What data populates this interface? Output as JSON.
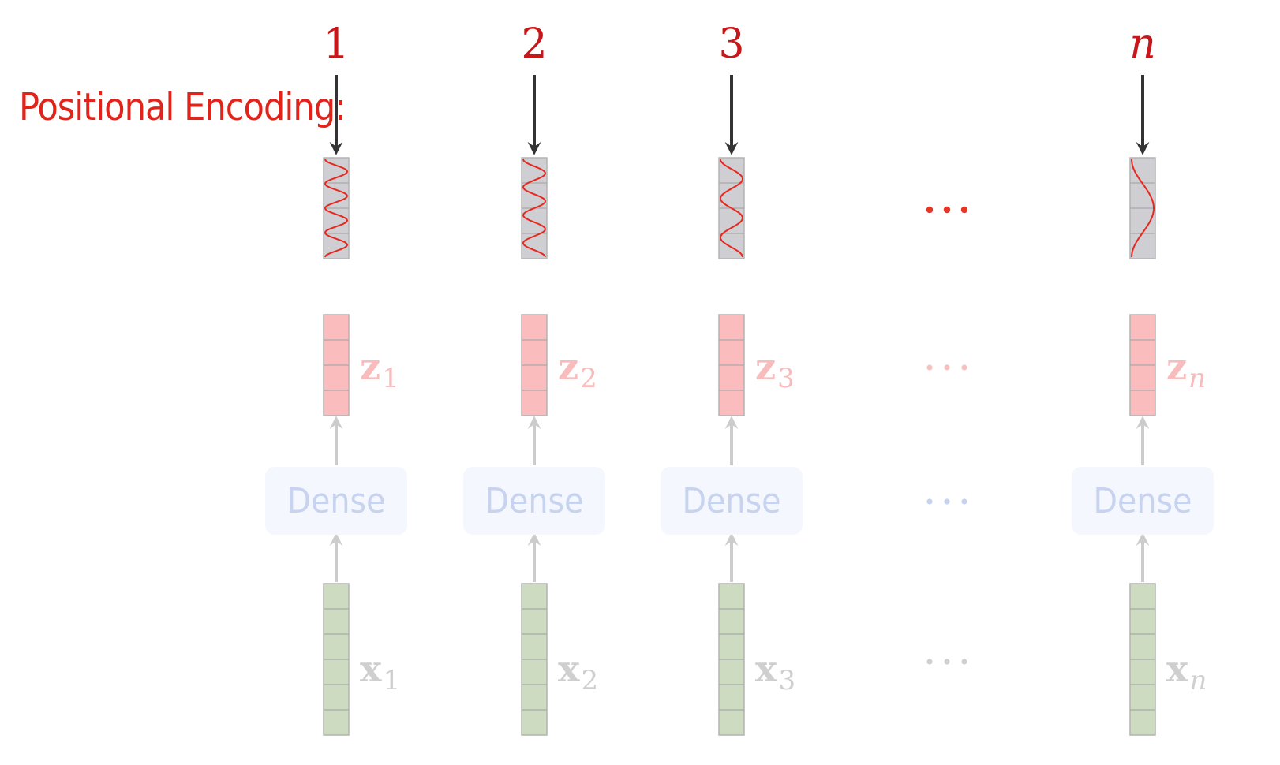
{
  "title": "Positional Encoding:",
  "ellipsis": "···",
  "dense_label": "Dense",
  "columns": [
    {
      "position": "1",
      "z_symbol": "z",
      "z_sub": "1",
      "x_symbol": "x",
      "x_sub": "1"
    },
    {
      "position": "2",
      "z_symbol": "z",
      "z_sub": "2",
      "x_symbol": "x",
      "x_sub": "2"
    },
    {
      "position": "3",
      "z_symbol": "z",
      "z_sub": "3",
      "x_symbol": "x",
      "x_sub": "3"
    },
    {
      "position": "n",
      "z_symbol": "z",
      "z_sub": "n",
      "x_symbol": "x",
      "x_sub": "n"
    }
  ],
  "colors": {
    "title": "#e2231a",
    "position_index": "#c8171b",
    "encoding_vector_fill": "#cfcfd3",
    "encoding_wave": "#e8281e",
    "z_vector_fill": "#fbbcbd",
    "x_vector_fill": "#cddcc1",
    "dense_fill": "#f4f7fd",
    "dense_text": "#c7d3ef",
    "arrow_dark": "#333333",
    "arrow_light": "#cccccc"
  }
}
